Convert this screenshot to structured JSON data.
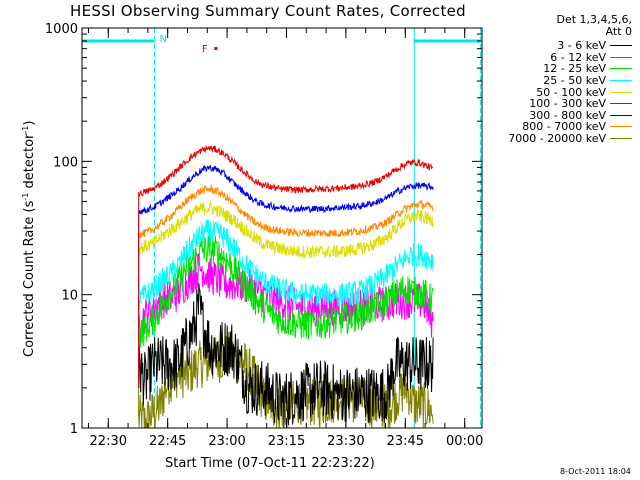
{
  "title": "HESSI Observing Summary Count Rates, Corrected",
  "xlabel": "Start Time (07-Oct-11 22:23:22)",
  "ylabel_main": "Corrected Count Rate (s",
  "ylabel_sup1": "-1",
  "ylabel_mid": " detector",
  "ylabel_sup2": "-1",
  "ylabel_end": ")",
  "stamp": "8-Oct-2011 18:04",
  "legend": {
    "header1": "Det 1,3,4,5,6,",
    "header2": "Att 0",
    "entries": [
      {
        "label": "3 - 6 keV",
        "color": "#000000"
      },
      {
        "label": "6 - 12 keV",
        "color": "#ff00ff"
      },
      {
        "label": "12 - 25 keV",
        "color": "#00e000"
      },
      {
        "label": "25 - 50 keV",
        "color": "#00ffff"
      },
      {
        "label": "50 - 100 keV",
        "color": "#dddd00"
      },
      {
        "label": "100 - 300 keV",
        "color": "#ee0000"
      },
      {
        "label": "300 - 800 keV",
        "color": "#0000ee"
      },
      {
        "label": "800 - 7000 keV",
        "color": "#ff8800"
      },
      {
        "label": "7000 - 20000 keV",
        "color": "#808000"
      }
    ]
  },
  "annotations": {
    "night_label": "N",
    "flare_label": "F"
  },
  "chart_data": {
    "type": "line",
    "title": "HESSI Observing Summary Count Rates, Corrected",
    "xlabel": "Start Time (07-Oct-11 22:23:22)",
    "ylabel": "Corrected Count Rate (s-1 detector-1)",
    "x_unit": "minutes after 22:23:22",
    "xlim": [
      0,
      101
    ],
    "ylim": [
      1,
      1000
    ],
    "y_scale": "log",
    "x_ticks": [
      "22:30",
      "22:45",
      "23:00",
      "23:15",
      "23:30",
      "23:45",
      "00:00"
    ],
    "y_ticks": [
      "1",
      "10",
      "100",
      "1000"
    ],
    "markers": {
      "night_start": 18.3,
      "night_end": 83.9,
      "saa_end": 100.6,
      "flare_time": 33.3
    },
    "series": [
      {
        "name": "3 - 6 keV",
        "color": "#000000",
        "x": [
          14.3,
          16,
          18,
          20,
          22,
          24,
          26,
          27.5,
          28.5,
          29.5,
          30.5,
          31.5,
          32.5,
          34,
          36,
          38,
          40,
          42,
          44,
          46,
          50,
          55,
          60,
          65,
          70,
          74,
          77,
          79,
          81,
          83,
          85,
          86.5,
          88.7
        ],
        "y": [
          3,
          2.2,
          3,
          3,
          3,
          3,
          4,
          5,
          6,
          8,
          6,
          5,
          4,
          4,
          4,
          4,
          3,
          2,
          2,
          2,
          1.6,
          1.8,
          2,
          1.8,
          1.8,
          1.8,
          1.8,
          3,
          3,
          3,
          3,
          3,
          3
        ]
      },
      {
        "name": "6 - 12 keV",
        "color": "#ff00ff",
        "x": [
          14.3,
          16,
          18,
          20,
          22,
          24,
          26,
          28,
          30,
          32,
          34,
          36,
          38,
          40,
          42,
          44,
          46,
          50,
          55,
          60,
          65,
          70,
          74,
          77,
          79,
          81,
          83,
          85,
          86.5,
          88.7
        ],
        "y": [
          6,
          7,
          8,
          9,
          9.5,
          10,
          12,
          14,
          16,
          14,
          13,
          12,
          12,
          12,
          11.5,
          11,
          10,
          9,
          8,
          8,
          8,
          8,
          8.5,
          8.5,
          9,
          9,
          9,
          9,
          8.5,
          6
        ]
      },
      {
        "name": "12 - 25 keV",
        "color": "#00e000",
        "x": [
          14.3,
          16,
          18,
          20,
          22,
          24,
          26,
          28,
          30,
          32,
          34,
          36,
          38,
          40,
          42,
          44,
          46,
          50,
          55,
          60,
          65,
          70,
          74,
          77,
          79,
          81,
          83,
          85,
          86.5,
          88.7
        ],
        "y": [
          5,
          5.5,
          6.5,
          8,
          10,
          12,
          15,
          18,
          21,
          22,
          21,
          19,
          16,
          13,
          11,
          9,
          8,
          6.5,
          6,
          6,
          6.5,
          7,
          8,
          9,
          10,
          11,
          11,
          10,
          10,
          9
        ]
      },
      {
        "name": "25 - 50 keV",
        "color": "#00ffff",
        "x": [
          14.3,
          16,
          18,
          20,
          22,
          24,
          26,
          28,
          30,
          32,
          34,
          36,
          38,
          40,
          42,
          44,
          46,
          50,
          55,
          60,
          65,
          70,
          74,
          77,
          79,
          81,
          83,
          85,
          86.5,
          88.7
        ],
        "y": [
          9,
          10,
          11,
          12.5,
          14,
          16,
          20,
          24,
          28,
          30,
          29,
          27,
          23,
          19,
          16,
          14,
          12.5,
          11,
          10,
          10,
          10,
          10.5,
          12,
          14,
          16,
          18,
          20,
          20,
          19.5,
          18
        ]
      },
      {
        "name": "50 - 100 keV",
        "color": "#dddd00",
        "x": [
          14.3,
          16,
          18,
          20,
          22,
          24,
          26,
          28,
          30,
          32,
          34,
          36,
          38,
          40,
          42,
          44,
          46,
          50,
          55,
          60,
          65,
          70,
          74,
          77,
          79,
          81,
          83,
          85,
          86.5,
          88.7
        ],
        "y": [
          22,
          23,
          24,
          27,
          30,
          33,
          37,
          41,
          44,
          45,
          43,
          40,
          37,
          33,
          29,
          26,
          24,
          22,
          21,
          21,
          21,
          22,
          24,
          27,
          31,
          35,
          38,
          39,
          38,
          36
        ]
      },
      {
        "name": "100 - 300 keV",
        "color": "#ee0000",
        "x": [
          14.3,
          16,
          18,
          20,
          22,
          24,
          26,
          28,
          30,
          32,
          34,
          36,
          38,
          40,
          42,
          44,
          46,
          50,
          55,
          60,
          65,
          70,
          74,
          77,
          79,
          81,
          83,
          85,
          86.5,
          88.7
        ],
        "y": [
          57,
          59,
          62,
          68,
          76,
          86,
          98,
          110,
          120,
          126,
          122,
          113,
          100,
          88,
          78,
          70,
          66,
          62,
          61,
          62,
          63,
          65,
          70,
          78,
          86,
          93,
          98,
          98,
          94,
          88
        ]
      },
      {
        "name": "300 - 800 keV",
        "color": "#0000ee",
        "x": [
          14.3,
          16,
          18,
          20,
          22,
          24,
          26,
          28,
          30,
          32,
          34,
          36,
          38,
          40,
          42,
          44,
          46,
          50,
          55,
          60,
          65,
          70,
          74,
          77,
          79,
          81,
          83,
          85,
          86.5,
          88.7
        ],
        "y": [
          42,
          43,
          45,
          49,
          54,
          60,
          68,
          77,
          85,
          90,
          87,
          80,
          70,
          62,
          55,
          50,
          47,
          45,
          44,
          44,
          45,
          46,
          49,
          53,
          58,
          62,
          65,
          66,
          65,
          64
        ]
      },
      {
        "name": "800 - 7000 keV",
        "color": "#ff8800",
        "x": [
          14.3,
          16,
          18,
          20,
          22,
          24,
          26,
          28,
          30,
          32,
          34,
          36,
          38,
          40,
          42,
          44,
          46,
          50,
          55,
          60,
          65,
          70,
          74,
          77,
          79,
          81,
          83,
          85,
          86.5,
          88.7
        ],
        "y": [
          28,
          29,
          31,
          34,
          38,
          43,
          49,
          55,
          60,
          62,
          60,
          55,
          49,
          43,
          38,
          34,
          32,
          30,
          29,
          29,
          29,
          30,
          32,
          35,
          39,
          43,
          46,
          48,
          47,
          45
        ]
      },
      {
        "name": "7000 - 20000 keV",
        "color": "#808000",
        "x": [
          14.3,
          16,
          18,
          20,
          21,
          23,
          25,
          27,
          29,
          31,
          33,
          35,
          37,
          39,
          41,
          43,
          44.5,
          46,
          50,
          55,
          60,
          65,
          70,
          75,
          78,
          80,
          82,
          84,
          86,
          88.7
        ],
        "y": [
          1.2,
          1.1,
          1.3,
          1.5,
          2,
          2.5,
          2.5,
          2.5,
          3,
          3,
          3.2,
          3.3,
          3.5,
          3.3,
          3,
          2.5,
          2,
          1.6,
          1.4,
          1.6,
          1.5,
          1.7,
          1.6,
          1.4,
          1.5,
          1.8,
          2,
          1.5,
          1.5,
          1.3
        ]
      }
    ]
  }
}
